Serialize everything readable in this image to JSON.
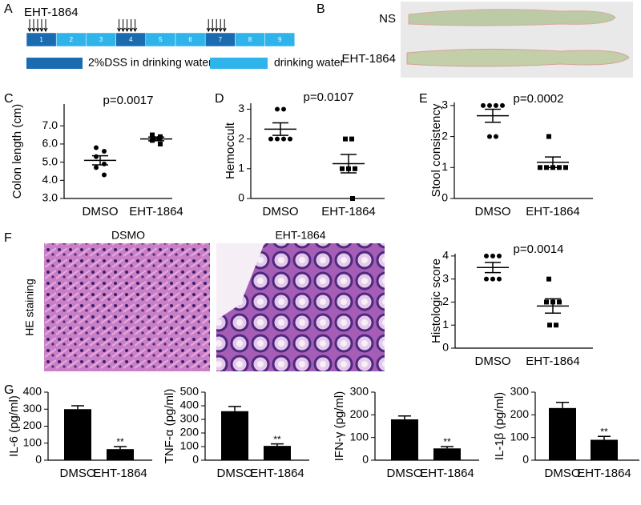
{
  "panels": [
    "A",
    "B",
    "C",
    "D",
    "E",
    "F",
    "G"
  ],
  "schedule": {
    "drug": "EHT-1864",
    "days": [
      "1",
      "2",
      "3",
      "4",
      "5",
      "6",
      "7",
      "8",
      "9"
    ],
    "dss": [
      true,
      false,
      false,
      true,
      false,
      false,
      true,
      false,
      false
    ],
    "dss_color": "#1a6bb0",
    "water_color": "#2eb3ea",
    "legend": [
      "2%DSS in drinking water",
      "drinking water"
    ]
  },
  "photo": {
    "labels": [
      "NS",
      "EHT-1864"
    ]
  },
  "staining": {
    "titles": [
      "DSMO",
      "EHT-1864"
    ],
    "label": "HE staining"
  },
  "chart_data": [
    {
      "type": "dotplot",
      "y_label": "Colon length (cm)",
      "annotation": "p=0.0017",
      "categories": [
        "DMSO",
        "EHT-1864"
      ],
      "markers": [
        "circle",
        "square"
      ],
      "points": [
        [
          5.8,
          5.6,
          5.3,
          4.9,
          4.7,
          4.3
        ],
        [
          6.5,
          6.4,
          6.3,
          6.3,
          6.2,
          6.0
        ]
      ],
      "mean": [
        5.1,
        6.28
      ],
      "sem": [
        0.25,
        0.1
      ],
      "ylim": [
        3,
        8.2
      ],
      "yticks": [
        {
          "value": 3,
          "label": "3.0"
        },
        {
          "value": 4,
          "label": "4.0"
        },
        {
          "value": 5,
          "label": "5.0"
        },
        {
          "value": 6,
          "label": "6.0"
        },
        {
          "value": 7,
          "label": "7.0"
        }
      ]
    },
    {
      "type": "dotplot",
      "y_label": "Hemoccult",
      "annotation": "p=0.0107",
      "categories": [
        "DMSO",
        "EHT-1864"
      ],
      "markers": [
        "circle",
        "square"
      ],
      "points": [
        [
          3,
          3,
          2,
          2,
          2,
          2
        ],
        [
          2,
          2,
          1,
          1,
          1,
          0
        ]
      ],
      "mean": [
        2.33,
        1.17
      ],
      "sem": [
        0.21,
        0.31
      ],
      "ylim": [
        0,
        3.2
      ],
      "yticks": [
        0,
        1,
        2,
        3
      ]
    },
    {
      "type": "dotplot",
      "y_label": "Stool consistency",
      "annotation": "p=0.0002",
      "categories": [
        "DMSO",
        "EHT-1864"
      ],
      "markers": [
        "circle",
        "square"
      ],
      "points": [
        [
          3,
          3,
          3,
          3,
          2,
          2
        ],
        [
          2,
          1,
          1,
          1,
          1,
          1
        ]
      ],
      "mean": [
        2.67,
        1.17
      ],
      "sem": [
        0.21,
        0.17
      ],
      "ylim": [
        0,
        3.1
      ],
      "yticks": [
        0,
        1,
        2,
        3
      ]
    },
    {
      "type": "dotplot",
      "y_label": "Histologic score",
      "annotation": "p=0.0014",
      "categories": [
        "DMSO",
        "EHT-1864"
      ],
      "markers": [
        "circle",
        "square"
      ],
      "points": [
        [
          4,
          4,
          4,
          3,
          3,
          3
        ],
        [
          3,
          2,
          2,
          2,
          1,
          1
        ]
      ],
      "mean": [
        3.5,
        1.83
      ],
      "sem": [
        0.22,
        0.31
      ],
      "ylim": [
        0,
        4.1
      ],
      "yticks": [
        0,
        1,
        2,
        3,
        4
      ]
    },
    {
      "type": "bar",
      "y_label": "IL-6 (pg/ml)",
      "categories": [
        "DMSO",
        "EHT-1864"
      ],
      "values": [
        300,
        65
      ],
      "errors": [
        20,
        15
      ],
      "sig_labels": [
        null,
        "**"
      ],
      "color": "#000000",
      "ylim": [
        0,
        400
      ],
      "yticks": [
        0,
        100,
        200,
        300,
        400
      ]
    },
    {
      "type": "bar",
      "y_label": "TNF-α (pg/ml)",
      "categories": [
        "DMSO",
        "EHT-1864"
      ],
      "values": [
        360,
        105
      ],
      "errors": [
        35,
        15
      ],
      "sig_labels": [
        null,
        "**"
      ],
      "color": "#000000",
      "ylim": [
        0,
        500
      ],
      "yticks": [
        0,
        100,
        200,
        300,
        400,
        500
      ]
    },
    {
      "type": "bar",
      "y_label": "IFN-γ (pg/ml)",
      "categories": [
        "DMSO",
        "EHT-1864"
      ],
      "values": [
        180,
        52
      ],
      "errors": [
        15,
        8
      ],
      "sig_labels": [
        null,
        "**"
      ],
      "color": "#000000",
      "ylim": [
        0,
        300
      ],
      "yticks": [
        0,
        100,
        200,
        300
      ]
    },
    {
      "type": "bar",
      "y_label": "IL-1β (pg/ml)",
      "categories": [
        "DMSO",
        "EHT-1864"
      ],
      "values": [
        230,
        90
      ],
      "errors": [
        25,
        15
      ],
      "sig_labels": [
        null,
        "**"
      ],
      "color": "#000000",
      "ylim": [
        0,
        300
      ],
      "yticks": [
        0,
        100,
        200,
        300
      ]
    }
  ]
}
